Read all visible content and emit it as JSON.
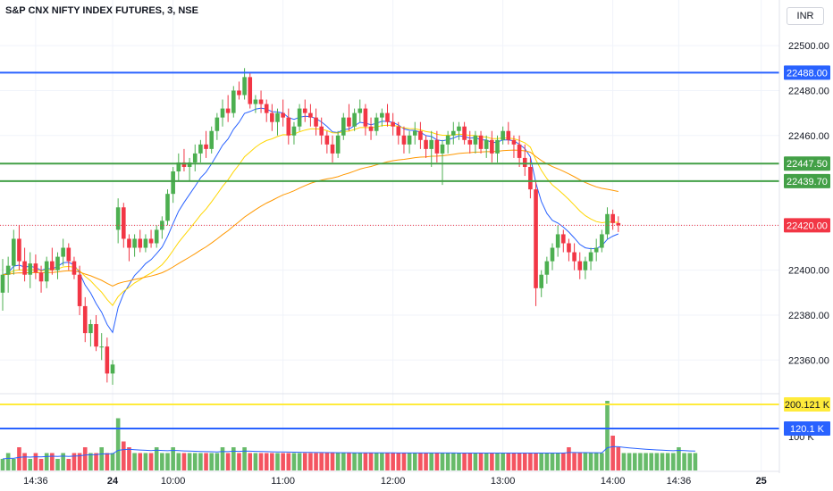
{
  "header": {
    "title": "S&P CNX NIFTY INDEX FUTURES, 3, NSE",
    "currency": "INR"
  },
  "colors": {
    "up": "#4caf50",
    "down": "#f23645",
    "ema_fast": "#2962ff",
    "ema_mid": "#ffd600",
    "ema_slow": "#ff9800",
    "hline_blue": "#2962ff",
    "hline_green": "#43a047",
    "last_price": "#f23645",
    "vol_ma": "#2962ff",
    "vol_yellow": "#ffeb3b"
  },
  "chart_data": {
    "type": "candlestick",
    "y_ticks": [
      "22500.00",
      "22480.00",
      "22460.00",
      "22440.00",
      "22420.00",
      "22400.00",
      "22380.00",
      "22360.00"
    ],
    "y_tick_values": [
      22500,
      22480,
      22460,
      22440,
      22420,
      22400,
      22380,
      22360
    ],
    "ylim": [
      22347,
      22510
    ],
    "x_ticks": [
      {
        "label": "14:36",
        "i": 6,
        "bold": false
      },
      {
        "label": "24",
        "i": 20,
        "bold": true
      },
      {
        "label": "10:00",
        "i": 31,
        "bold": false
      },
      {
        "label": "11:00",
        "i": 51,
        "bold": false
      },
      {
        "label": "12:00",
        "i": 71,
        "bold": false
      },
      {
        "label": "13:00",
        "i": 91,
        "bold": false
      },
      {
        "label": "14:00",
        "i": 111,
        "bold": false
      },
      {
        "label": "14:36",
        "i": 123,
        "bold": false
      },
      {
        "label": "25",
        "i": 138,
        "bold": true
      }
    ],
    "price_lines": [
      {
        "label": "22488.00",
        "value": 22488.0,
        "color": "#2962ff"
      },
      {
        "label": "22447.50",
        "value": 22447.5,
        "color": "#43a047"
      },
      {
        "label": "22439.70",
        "value": 22439.7,
        "color": "#43a047"
      }
    ],
    "last_price": {
      "label": "22420.00",
      "value": 22420.0
    },
    "volume_tags": [
      {
        "label": "200.121 K",
        "color": "#ffeb3b",
        "text": "#131722"
      },
      {
        "label": "120.1 K",
        "color": "#2962ff",
        "text": "#ffffff"
      }
    ],
    "volume_partial_label": "100 K",
    "candles": [
      [
        22390,
        22405,
        22382,
        22398
      ],
      [
        22398,
        22406,
        22390,
        22402
      ],
      [
        22402,
        22418,
        22398,
        22414
      ],
      [
        22414,
        22420,
        22400,
        22404
      ],
      [
        22404,
        22410,
        22395,
        22398
      ],
      [
        22398,
        22408,
        22392,
        22403
      ],
      [
        22403,
        22407,
        22396,
        22399
      ],
      [
        22399,
        22402,
        22390,
        22395
      ],
      [
        22395,
        22406,
        22392,
        22404
      ],
      [
        22404,
        22410,
        22398,
        22400
      ],
      [
        22400,
        22408,
        22396,
        22406
      ],
      [
        22406,
        22414,
        22402,
        22410
      ],
      [
        22410,
        22412,
        22400,
        22404
      ],
      [
        22404,
        22406,
        22396,
        22398
      ],
      [
        22398,
        22402,
        22380,
        22384
      ],
      [
        22384,
        22388,
        22368,
        22372
      ],
      [
        22372,
        22378,
        22366,
        22376
      ],
      [
        22376,
        22380,
        22364,
        22366
      ],
      [
        22366,
        22372,
        22360,
        22366
      ],
      [
        22366,
        22370,
        22350,
        22354
      ],
      [
        22354,
        22360,
        22349,
        22358
      ],
      [
        22418,
        22432,
        22412,
        22428
      ],
      [
        22428,
        22430,
        22410,
        22414
      ],
      [
        22414,
        22416,
        22404,
        22410
      ],
      [
        22410,
        22416,
        22406,
        22414
      ],
      [
        22414,
        22418,
        22408,
        22410
      ],
      [
        22410,
        22416,
        22408,
        22414
      ],
      [
        22414,
        22418,
        22410,
        22412
      ],
      [
        22412,
        22420,
        22410,
        22418
      ],
      [
        22418,
        22424,
        22414,
        22422
      ],
      [
        22422,
        22436,
        22420,
        22434
      ],
      [
        22434,
        22446,
        22430,
        22444
      ],
      [
        22444,
        22452,
        22440,
        22448
      ],
      [
        22448,
        22454,
        22444,
        22446
      ],
      [
        22446,
        22450,
        22440,
        22448
      ],
      [
        22448,
        22456,
        22444,
        22452
      ],
      [
        22452,
        22458,
        22448,
        22456
      ],
      [
        22456,
        22462,
        22450,
        22454
      ],
      [
        22454,
        22464,
        22452,
        22462
      ],
      [
        22462,
        22470,
        22458,
        22468
      ],
      [
        22468,
        22476,
        22464,
        22472
      ],
      [
        22472,
        22478,
        22466,
        22470
      ],
      [
        22470,
        22482,
        22468,
        22480
      ],
      [
        22480,
        22484,
        22476,
        22478
      ],
      [
        22478,
        22490,
        22476,
        22486
      ],
      [
        22486,
        22488,
        22472,
        22474
      ],
      [
        22474,
        22478,
        22470,
        22476
      ],
      [
        22476,
        22480,
        22470,
        22474
      ],
      [
        22474,
        22476,
        22466,
        22470
      ],
      [
        22470,
        22474,
        22462,
        22466
      ],
      [
        22466,
        22472,
        22460,
        22470
      ],
      [
        22470,
        22476,
        22464,
        22468
      ],
      [
        22468,
        22472,
        22456,
        22460
      ],
      [
        22460,
        22466,
        22456,
        22464
      ],
      [
        22464,
        22474,
        22462,
        22472
      ],
      [
        22472,
        22476,
        22466,
        22470
      ],
      [
        22470,
        22474,
        22464,
        22468
      ],
      [
        22468,
        22472,
        22460,
        22464
      ],
      [
        22464,
        22468,
        22456,
        22460
      ],
      [
        22460,
        22462,
        22452,
        22456
      ],
      [
        22456,
        22460,
        22448,
        22452
      ],
      [
        22452,
        22462,
        22450,
        22460
      ],
      [
        22460,
        22470,
        22458,
        22468
      ],
      [
        22468,
        22474,
        22462,
        22464
      ],
      [
        22464,
        22472,
        22462,
        22470
      ],
      [
        22470,
        22476,
        22466,
        22472
      ],
      [
        22472,
        22474,
        22460,
        22464
      ],
      [
        22464,
        22468,
        22458,
        22462
      ],
      [
        22462,
        22470,
        22460,
        22468
      ],
      [
        22468,
        22472,
        22464,
        22470
      ],
      [
        22470,
        22474,
        22464,
        22466
      ],
      [
        22466,
        22470,
        22460,
        22464
      ],
      [
        22464,
        22466,
        22456,
        22460
      ],
      [
        22460,
        22464,
        22452,
        22456
      ],
      [
        22456,
        22462,
        22452,
        22460
      ],
      [
        22460,
        22466,
        22456,
        22462
      ],
      [
        22462,
        22466,
        22454,
        22458
      ],
      [
        22458,
        22460,
        22450,
        22454
      ],
      [
        22454,
        22462,
        22446,
        22458
      ],
      [
        22458,
        22462,
        22448,
        22452
      ],
      [
        22452,
        22458,
        22438,
        22456
      ],
      [
        22456,
        22462,
        22452,
        22460
      ],
      [
        22460,
        22466,
        22456,
        22462
      ],
      [
        22462,
        22466,
        22458,
        22464
      ],
      [
        22464,
        22466,
        22456,
        22458
      ],
      [
        22458,
        22462,
        22452,
        22456
      ],
      [
        22456,
        22462,
        22452,
        22460
      ],
      [
        22460,
        22462,
        22452,
        22454
      ],
      [
        22454,
        22460,
        22450,
        22458
      ],
      [
        22458,
        22462,
        22448,
        22452
      ],
      [
        22452,
        22460,
        22448,
        22458
      ],
      [
        22458,
        22464,
        22456,
        22462
      ],
      [
        22462,
        22466,
        22456,
        22458
      ],
      [
        22458,
        22460,
        22450,
        22456
      ],
      [
        22456,
        22460,
        22446,
        22450
      ],
      [
        22450,
        22456,
        22442,
        22446
      ],
      [
        22446,
        22450,
        22432,
        22436
      ],
      [
        22436,
        22440,
        22384,
        22392
      ],
      [
        22392,
        22400,
        22388,
        22398
      ],
      [
        22398,
        22406,
        22394,
        22404
      ],
      [
        22404,
        22412,
        22400,
        22410
      ],
      [
        22410,
        22420,
        22406,
        22416
      ],
      [
        22416,
        22418,
        22408,
        22412
      ],
      [
        22412,
        22414,
        22404,
        22408
      ],
      [
        22408,
        22412,
        22400,
        22404
      ],
      [
        22404,
        22408,
        22396,
        22400
      ],
      [
        22400,
        22406,
        22396,
        22404
      ],
      [
        22404,
        22410,
        22400,
        22408
      ],
      [
        22408,
        22414,
        22404,
        22410
      ],
      [
        22410,
        22418,
        22408,
        22416
      ],
      [
        22416,
        22428,
        22414,
        22425
      ],
      [
        22425,
        22427,
        22418,
        22421
      ],
      [
        22421,
        22424,
        22417,
        22420
      ]
    ],
    "volume": [
      2,
      3,
      2,
      4,
      3,
      2,
      3,
      2,
      3,
      3,
      2,
      3,
      2,
      3,
      3,
      4,
      3,
      3,
      4,
      3,
      3,
      9,
      5,
      4,
      3,
      3,
      3,
      3,
      4,
      3,
      3,
      4,
      3,
      3,
      3,
      3,
      3,
      3,
      3,
      3,
      4,
      3,
      4,
      3,
      4,
      3,
      3,
      3,
      3,
      3,
      3,
      3,
      3,
      3,
      3,
      3,
      3,
      3,
      3,
      3,
      3,
      3,
      3,
      3,
      3,
      3,
      3,
      3,
      3,
      3,
      3,
      3,
      3,
      3,
      3,
      3,
      3,
      3,
      3,
      3,
      3,
      3,
      3,
      3,
      3,
      3,
      3,
      3,
      3,
      3,
      3,
      3,
      3,
      3,
      3,
      3,
      3,
      3,
      3,
      3,
      3,
      3,
      3,
      4,
      3,
      3,
      3,
      3,
      3,
      3,
      12,
      6,
      4,
      3,
      3,
      3,
      3,
      3,
      3,
      3,
      3,
      3,
      3,
      4,
      3,
      3,
      3
    ]
  }
}
